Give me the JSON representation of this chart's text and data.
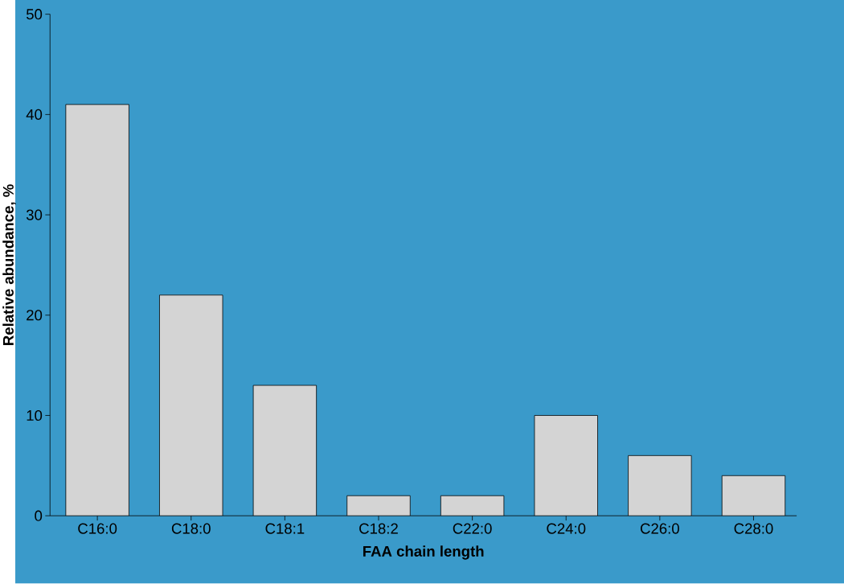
{
  "chart_data": {
    "type": "bar",
    "xlabel": "FAA chain length",
    "ylabel": "Relative abundance, %",
    "categories": [
      "C16:0",
      "C18:0",
      "C18:1",
      "C18:2",
      "C22:0",
      "C24:0",
      "C26:0",
      "C28:0"
    ],
    "values": [
      41,
      22,
      13,
      2,
      2,
      10,
      6,
      4
    ],
    "color": "#d4d4d4",
    "ylim": [
      0,
      50
    ],
    "yticks": [
      0,
      10,
      20,
      30,
      40,
      50
    ]
  }
}
